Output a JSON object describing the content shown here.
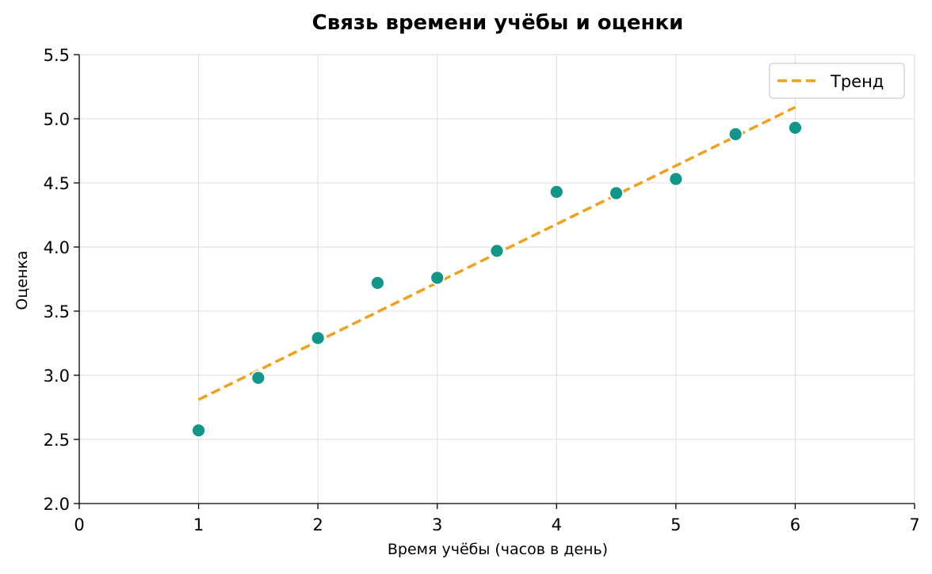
{
  "chart_data": {
    "type": "scatter",
    "title": "Связь времени учёбы и оценки",
    "xlabel": "Время учёбы (часов в день)",
    "ylabel": "Оценка",
    "xlim": [
      0,
      7
    ],
    "ylim": [
      2.0,
      5.5
    ],
    "xticks": [
      "0",
      "1",
      "2",
      "3",
      "4",
      "5",
      "6",
      "7"
    ],
    "yticks": [
      "2.0",
      "2.5",
      "3.0",
      "3.5",
      "4.0",
      "4.5",
      "5.0",
      "5.5"
    ],
    "grid": true,
    "legend_position": "top-right",
    "series": [
      {
        "kind": "scatter",
        "color": "#12968a",
        "x": [
          1,
          1.5,
          2,
          2.5,
          3,
          3.5,
          4,
          4.5,
          5,
          5.5,
          6
        ],
        "y": [
          2.57,
          2.98,
          3.29,
          3.72,
          3.76,
          3.97,
          4.43,
          4.42,
          4.53,
          4.88,
          4.93
        ]
      },
      {
        "kind": "line",
        "name": "Тренд",
        "style": "dashed",
        "color": "#f0a01a",
        "x": [
          1,
          6
        ],
        "y": [
          2.81,
          5.09
        ]
      }
    ]
  }
}
